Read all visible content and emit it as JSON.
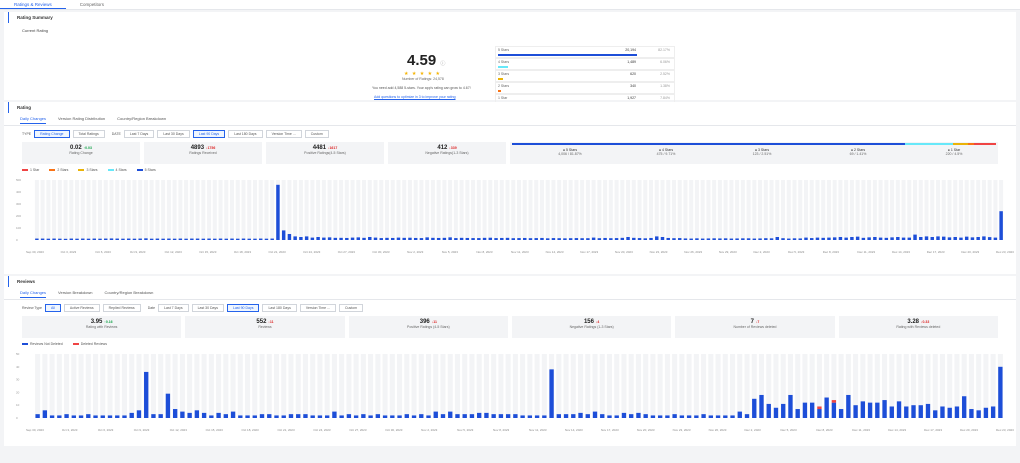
{
  "tabs": [
    "Ratings & Reviews",
    "Competitors"
  ],
  "summary": {
    "title": "Rating Summary",
    "current_label": "Current Rating",
    "rating": "4.59",
    "stars": "★ ★ ★ ★ ★",
    "num_ratings": "Number of Ratings: 24,578",
    "note": "You need add 4,588 5-stars. Your app's rating can grow to 4.67!",
    "link": "Add questions to optimize in 3 to improve your rating",
    "dist": [
      {
        "label": "5 Stars",
        "count": "20,194",
        "pct": "82.17%",
        "color": "#1d4ed8",
        "frac": 0.82
      },
      {
        "label": "4 Stars",
        "count": "1,489",
        "pct": "6.06%",
        "color": "#67e8f9",
        "frac": 0.06
      },
      {
        "label": "3 Stars",
        "count": "620",
        "pct": "2.52%",
        "color": "#eab308",
        "frac": 0.03
      },
      {
        "label": "2 Stars",
        "count": "340",
        "pct": "1.38%",
        "color": "#f97316",
        "frac": 0.014
      },
      {
        "label": "1 Star",
        "count": "1,927",
        "pct": "7.84%",
        "color": "#ef4444",
        "frac": 0.08
      }
    ]
  },
  "rating": {
    "title": "Rating",
    "subtabs": [
      "Daily Changes",
      "Version Rating Distribution",
      "Country/Region Breakdown"
    ],
    "type_label": "TYPE",
    "type_opts": [
      "Rating Change",
      "Total Ratings"
    ],
    "date_label": "DATE",
    "date_opts": [
      "Last 7 Days",
      "Last 30 Days",
      "Last 90 Days",
      "Last 180 Days",
      "Version Time ...",
      "Custom"
    ],
    "kpis": [
      {
        "val": "0.02",
        "chg": "0.03",
        "dir": "up",
        "label": "Rating Change"
      },
      {
        "val": "4893",
        "chg": "1756",
        "dir": "dn",
        "label": "Ratings Received"
      },
      {
        "val": "4481",
        "chg": "1617",
        "dir": "dn",
        "label": "Positive Ratings(4-5 Stars)"
      },
      {
        "val": "412",
        "chg": "339",
        "dir": "dn",
        "label": "Negative Ratings(1-3 Stars)"
      }
    ],
    "mini": [
      {
        "label": "5 Stars",
        "sub": "4,006 / 81.87%"
      },
      {
        "label": "4 Stars",
        "sub": "475 / 9.71%"
      },
      {
        "label": "3 Stars",
        "sub": "123 / 2.51%"
      },
      {
        "label": "2 Stars",
        "sub": "69 / 1.41%"
      },
      {
        "label": "1 Star",
        "sub": "220 / 4.5%"
      }
    ],
    "legend": [
      {
        "name": "1 Star",
        "color": "#ef4444"
      },
      {
        "name": "2 Stars",
        "color": "#f97316"
      },
      {
        "name": "3 Stars",
        "color": "#eab308"
      },
      {
        "name": "4 Stars",
        "color": "#67e8f9"
      },
      {
        "name": "5 Stars",
        "color": "#1d4ed8"
      }
    ],
    "yticks": [
      "500",
      "400",
      "300",
      "200",
      "100",
      "0"
    ],
    "xticks": [
      "Sep 30, 2023",
      "Oct 3, 2023",
      "Oct 6, 2023",
      "Oct 9, 2023",
      "Oct 12, 2023",
      "Oct 15, 2023",
      "Oct 18, 2023",
      "Oct 21, 2023",
      "Oct 24, 2023",
      "Oct 27, 2023",
      "Oct 30, 2023",
      "Nov 2, 2023",
      "Nov 5, 2023",
      "Nov 8, 2023",
      "Nov 11, 2023",
      "Nov 14, 2023",
      "Nov 17, 2023",
      "Nov 20, 2023",
      "Nov 23, 2023",
      "Nov 26, 2023",
      "Nov 29, 2023",
      "Dec 2, 2023",
      "Dec 5, 2023",
      "Dec 8, 2023",
      "Dec 11, 2023",
      "Dec 14, 2023",
      "Dec 17, 2023",
      "Dec 20, 2023",
      "Dec 23, 2023"
    ]
  },
  "reviews": {
    "title": "Reviews",
    "subtabs": [
      "Daily Changes",
      "Version Breakdown",
      "Country/Region Breakdown"
    ],
    "type_label": "Review Type",
    "type_opts": [
      "All",
      "Active Reviews",
      "Replied Reviews"
    ],
    "date_label": "Date",
    "date_opts": [
      "Last 7 Days",
      "Last 30 Days",
      "Last 90 Days",
      "Last 180 Days",
      "Version Time ...",
      "Custom"
    ],
    "kpis": [
      {
        "val": "3.95",
        "chg": "0.16",
        "dir": "up",
        "label": "Rating with Reviews"
      },
      {
        "val": "552",
        "chg": "11",
        "dir": "dn",
        "label": "Reviews"
      },
      {
        "val": "396",
        "chg": "11",
        "dir": "dn",
        "label": "Positive Ratings (4-5 Stars)"
      },
      {
        "val": "156",
        "chg": "4",
        "dir": "dn",
        "label": "Negative Ratings (1-3 Stars)"
      },
      {
        "val": "7",
        "chg": "7",
        "dir": "dn",
        "label": "Number of Reviews deleted"
      },
      {
        "val": "3.28",
        "chg": "0.33",
        "dir": "dn",
        "label": "Rating with Reviews deleted"
      }
    ],
    "legend": [
      {
        "name": "Reviews Not Deleted",
        "color": "#1d4ed8"
      },
      {
        "name": "Deleted Reviews",
        "color": "#ef4444"
      }
    ],
    "yticks": [
      "50",
      "40",
      "30",
      "20",
      "10",
      "0"
    ],
    "xticks": [
      "Sep 30, 2023",
      "Oct 3, 2023",
      "Oct 6, 2023",
      "Oct 9, 2023",
      "Oct 12, 2023",
      "Oct 15, 2023",
      "Oct 18, 2023",
      "Oct 21, 2023",
      "Oct 24, 2023",
      "Oct 27, 2023",
      "Oct 30, 2023",
      "Nov 2, 2023",
      "Nov 5, 2023",
      "Nov 8, 2023",
      "Nov 11, 2023",
      "Nov 14, 2023",
      "Nov 17, 2023",
      "Nov 20, 2023",
      "Nov 23, 2023",
      "Nov 26, 2023",
      "Dec 2, 2023",
      "Dec 5, 2023",
      "Dec 8, 2023",
      "Dec 11, 2023",
      "Dec 14, 2023",
      "Dec 17, 2023",
      "Dec 20, 2023",
      "Dec 23, 2023"
    ]
  },
  "chart_data": [
    {
      "type": "bar",
      "title": "",
      "series": [
        {
          "name": "5 Stars",
          "values": [
            12,
            12,
            11,
            12,
            11,
            10,
            12,
            11,
            12,
            11,
            12,
            11,
            12,
            13,
            12,
            11,
            12,
            11,
            12,
            14,
            11,
            12,
            11,
            12,
            11,
            12,
            11,
            12,
            12,
            11,
            12,
            11,
            12,
            11,
            12,
            11,
            12,
            11,
            11,
            12,
            11,
            12,
            460,
            80,
            50,
            30,
            25,
            30,
            20,
            25,
            20,
            22,
            18,
            18,
            17,
            20,
            22,
            18,
            25,
            20,
            16,
            18,
            17,
            20,
            18,
            19,
            17,
            16,
            22,
            18,
            17,
            18,
            22,
            16,
            18,
            17,
            16,
            16,
            18,
            19,
            16,
            17,
            18,
            15,
            16,
            17,
            15,
            16,
            17,
            14,
            16,
            15,
            14,
            15,
            16,
            15,
            15,
            20,
            15,
            17,
            15,
            16,
            18,
            25,
            18,
            16,
            14,
            17,
            30,
            25,
            17,
            15,
            16,
            13,
            12,
            14,
            12,
            13,
            14,
            13,
            14,
            12,
            13,
            14,
            14,
            12,
            13,
            15,
            14,
            25,
            15,
            12,
            14,
            13,
            20,
            16,
            20,
            18,
            20,
            22,
            25,
            20,
            25,
            28,
            18,
            22,
            25,
            20,
            18,
            22,
            25,
            20,
            20,
            45,
            25,
            30,
            25,
            30,
            28,
            22,
            25,
            20,
            28,
            22,
            25,
            30,
            24,
            20,
            240
          ]
        }
      ],
      "ylim": [
        0,
        500
      ]
    },
    {
      "type": "bar",
      "title": "",
      "series": [
        {
          "name": "Reviews Not Deleted",
          "values": [
            3,
            6,
            2,
            2,
            3,
            2,
            2,
            3,
            2,
            2,
            2,
            2,
            2,
            4,
            6,
            36,
            3,
            3,
            19,
            7,
            5,
            4,
            6,
            4,
            2,
            4,
            3,
            5,
            2,
            2,
            2,
            3,
            3,
            2,
            2,
            3,
            3,
            3,
            2,
            2,
            2,
            5,
            2,
            3,
            2,
            3,
            2,
            3,
            2,
            2,
            2,
            3,
            2,
            3,
            2,
            5,
            3,
            5,
            3,
            3,
            3,
            4,
            4,
            3,
            3,
            3,
            3,
            2,
            2,
            2,
            2,
            38,
            3,
            3,
            3,
            4,
            3,
            5,
            3,
            2,
            2,
            4,
            3,
            4,
            3,
            2,
            2,
            2,
            3,
            2,
            2,
            2,
            3,
            2,
            2,
            2,
            2,
            5,
            3,
            15,
            18,
            11,
            8,
            11,
            18,
            7,
            12,
            12,
            7,
            16,
            12,
            7,
            18,
            10,
            13,
            12,
            12,
            14,
            9,
            13,
            9,
            10,
            10,
            11,
            6,
            9,
            8,
            9,
            17,
            7,
            6,
            8,
            9,
            40
          ]
        },
        {
          "name": "Deleted Reviews",
          "values": [
            0,
            0,
            0,
            0,
            0,
            0,
            0,
            0,
            0,
            0,
            0,
            0,
            0,
            0,
            0,
            0,
            0,
            0,
            0,
            0,
            0,
            0,
            0,
            0,
            0,
            0,
            0,
            0,
            0,
            0,
            0,
            0,
            0,
            0,
            0,
            0,
            0,
            0,
            0,
            0,
            0,
            0,
            0,
            0,
            0,
            0,
            0,
            0,
            0,
            0,
            0,
            0,
            0,
            0,
            0,
            0,
            0,
            0,
            0,
            0,
            0,
            0,
            0,
            0,
            0,
            0,
            0,
            0,
            0,
            0,
            0,
            0,
            0,
            0,
            0,
            0,
            0,
            0,
            0,
            0,
            0,
            0,
            0,
            0,
            0,
            0,
            0,
            0,
            0,
            0,
            0,
            0,
            0,
            0,
            0,
            0,
            0,
            0,
            0,
            0,
            0,
            0,
            0,
            0,
            0,
            0,
            0,
            0,
            2,
            0,
            2,
            0,
            0,
            0,
            0,
            0,
            0,
            0,
            0,
            0,
            0,
            0,
            0,
            0,
            0,
            0,
            0,
            0,
            0,
            0
          ]
        }
      ],
      "ylim": [
        0,
        50
      ]
    }
  ]
}
